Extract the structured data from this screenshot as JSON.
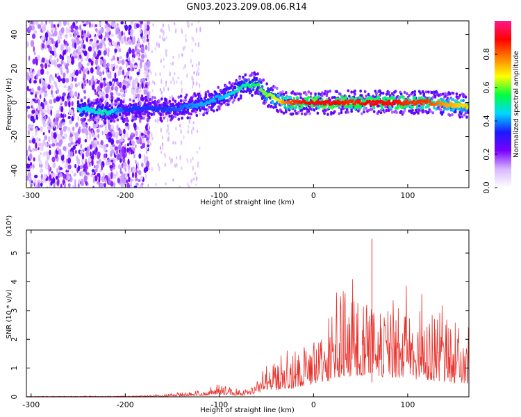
{
  "title": "GN03.2023.209.08.06.R14",
  "chart_data": [
    {
      "type": "heatmap",
      "xlabel": "Height of straight line (km)",
      "ylabel": "Frequency (Hz)",
      "xlim": [
        -305,
        165
      ],
      "ylim": [
        -50,
        48
      ],
      "x_ticks": [
        -300,
        -200,
        -100,
        0,
        100
      ],
      "y_ticks": [
        -40,
        -20,
        0,
        20,
        40
      ],
      "x_tick_labels": [
        "-300",
        "-200",
        "-100",
        "0",
        "100"
      ],
      "y_tick_labels": [
        "-40",
        "-20",
        "0",
        "20",
        "40"
      ],
      "colorbar": {
        "label": "Normalized spectral amplitude",
        "range": [
          0,
          1
        ],
        "ticks": [
          0,
          0.2,
          0.4,
          0.6,
          0.8
        ],
        "tick_labels": [
          "0.0",
          "0.2",
          "0.4",
          "0.6",
          "0.8"
        ],
        "colors": [
          "#ffffff",
          "#d8b8ff",
          "#7a00ff",
          "#1a1aff",
          "#00d8ff",
          "#00ff40",
          "#ffff00",
          "#ff8000",
          "#ff0000",
          "#ff1a8c"
        ]
      },
      "ridge": {
        "x": [
          -240,
          -220,
          -200,
          -180,
          -160,
          -140,
          -120,
          -100,
          -90,
          -80,
          -70,
          -60,
          -55,
          -50,
          -40,
          -30,
          -20,
          0,
          20,
          40,
          60,
          80,
          100,
          120,
          140,
          160
        ],
        "y": [
          -4,
          -6,
          -4,
          -3,
          -4,
          -3,
          -1,
          3,
          5,
          8,
          10,
          11,
          7,
          5,
          2,
          0,
          0,
          0,
          0,
          0,
          0,
          0,
          0,
          0,
          -1,
          -2
        ],
        "amplitude": [
          0.45,
          0.5,
          0.35,
          0.35,
          0.35,
          0.38,
          0.42,
          0.42,
          0.45,
          0.5,
          0.5,
          0.55,
          0.6,
          0.6,
          0.65,
          0.78,
          0.85,
          0.9,
          0.9,
          0.85,
          0.9,
          0.9,
          0.85,
          0.85,
          0.75,
          0.7
        ]
      }
    },
    {
      "type": "line",
      "xlabel": "Height of straight line (km)",
      "ylabel": "SNR (10 * v/v)",
      "y_scale_label": "(x10⁴)",
      "xlim": [
        -305,
        165
      ],
      "ylim": [
        0,
        5.8
      ],
      "x_ticks": [
        -300,
        -200,
        -100,
        0,
        100
      ],
      "y_ticks": [
        0,
        1,
        2,
        3,
        4,
        5
      ],
      "x_tick_labels": [
        "-300",
        "-200",
        "-100",
        "0",
        "100"
      ],
      "y_tick_labels": [
        "0",
        "1",
        "2",
        "3",
        "4",
        "5"
      ],
      "series": [
        {
          "color": "#e8302a",
          "envelope": {
            "x": [
              -305,
              -200,
              -160,
              -130,
              -110,
              -100,
              -90,
              -80,
              -70,
              -60,
              -50,
              -40,
              -30,
              -20,
              -10,
              0,
              10,
              20,
              30,
              40,
              50,
              60,
              70,
              80,
              90,
              100,
              110,
              120,
              130,
              140,
              150,
              160,
              165
            ],
            "y": [
              0.02,
              0.04,
              0.1,
              0.2,
              0.35,
              0.6,
              0.5,
              0.25,
              0.4,
              0.9,
              1.3,
              1.5,
              1.9,
              1.8,
              2.4,
              3.0,
              3.4,
              3.6,
              4.6,
              4.3,
              4.7,
              5.5,
              4.8,
              4.3,
              4.4,
              4.4,
              4.0,
              3.8,
              3.6,
              3.5,
              3.2,
              3.0,
              3.1
            ]
          },
          "peak": {
            "x": 62,
            "y": 5.5
          }
        }
      ]
    }
  ]
}
